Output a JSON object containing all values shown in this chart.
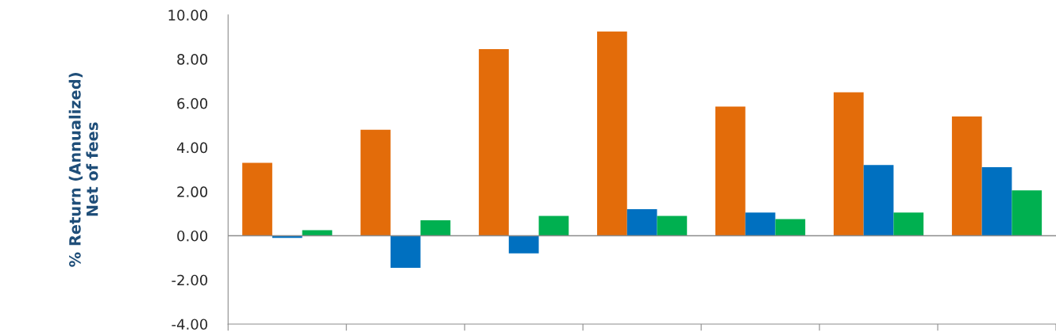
{
  "chart_data": {
    "type": "bar",
    "ylabel": "% Return (Annualized)\nNet of fees",
    "categories": [
      null,
      null,
      null,
      null,
      null,
      null,
      null
    ],
    "series": [
      {
        "color": "#e36c0a",
        "values": [
          3.3,
          4.8,
          8.45,
          9.25,
          5.85,
          6.5,
          5.4
        ]
      },
      {
        "color": "#0070c0",
        "values": [
          -0.1,
          -1.45,
          -0.8,
          1.2,
          1.05,
          3.2,
          3.1
        ]
      },
      {
        "color": "#00b050",
        "values": [
          0.25,
          0.7,
          0.9,
          0.9,
          0.75,
          1.05,
          2.05
        ]
      }
    ],
    "ylim": [
      -4,
      10
    ],
    "yticks": [
      {
        "value": -4,
        "label": "-4.00"
      },
      {
        "value": -2,
        "label": "-2.00"
      },
      {
        "value": 0,
        "label": "0.00"
      },
      {
        "value": 2,
        "label": "2.00"
      },
      {
        "value": 4,
        "label": "4.00"
      },
      {
        "value": 6,
        "label": "6.00"
      },
      {
        "value": 8,
        "label": "8.00"
      },
      {
        "value": 10,
        "label": "10.00"
      }
    ],
    "ref_lines": [
      {
        "axis": "y",
        "value": 0,
        "color": "#8c8c8c"
      }
    ],
    "grid": false,
    "legend": false
  }
}
